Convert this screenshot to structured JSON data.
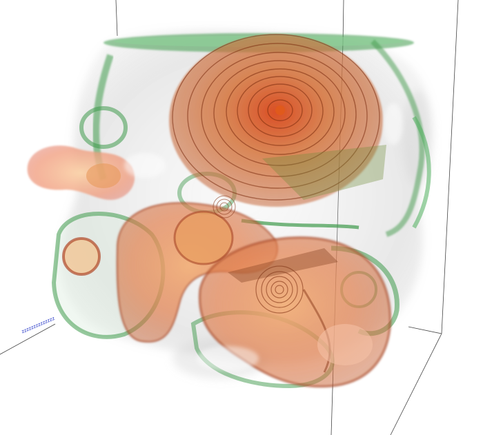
{
  "viewer": {
    "axis_label": "zzzzzzzzzzzzzz"
  },
  "colors": {
    "background": "#ffffff",
    "box_edge": "#444444",
    "outer_surface": "#b9b9b9",
    "shell_green": "#3f9a4c",
    "inner_orange": "#d2582a",
    "core_red": "#b03a12",
    "axis_label": "#1a2cc4"
  },
  "rendering": {
    "type": "3D volume rendering",
    "isosurface_layers": [
      "outer-grey",
      "green-shell",
      "orange-core"
    ],
    "bounding_box": true
  }
}
